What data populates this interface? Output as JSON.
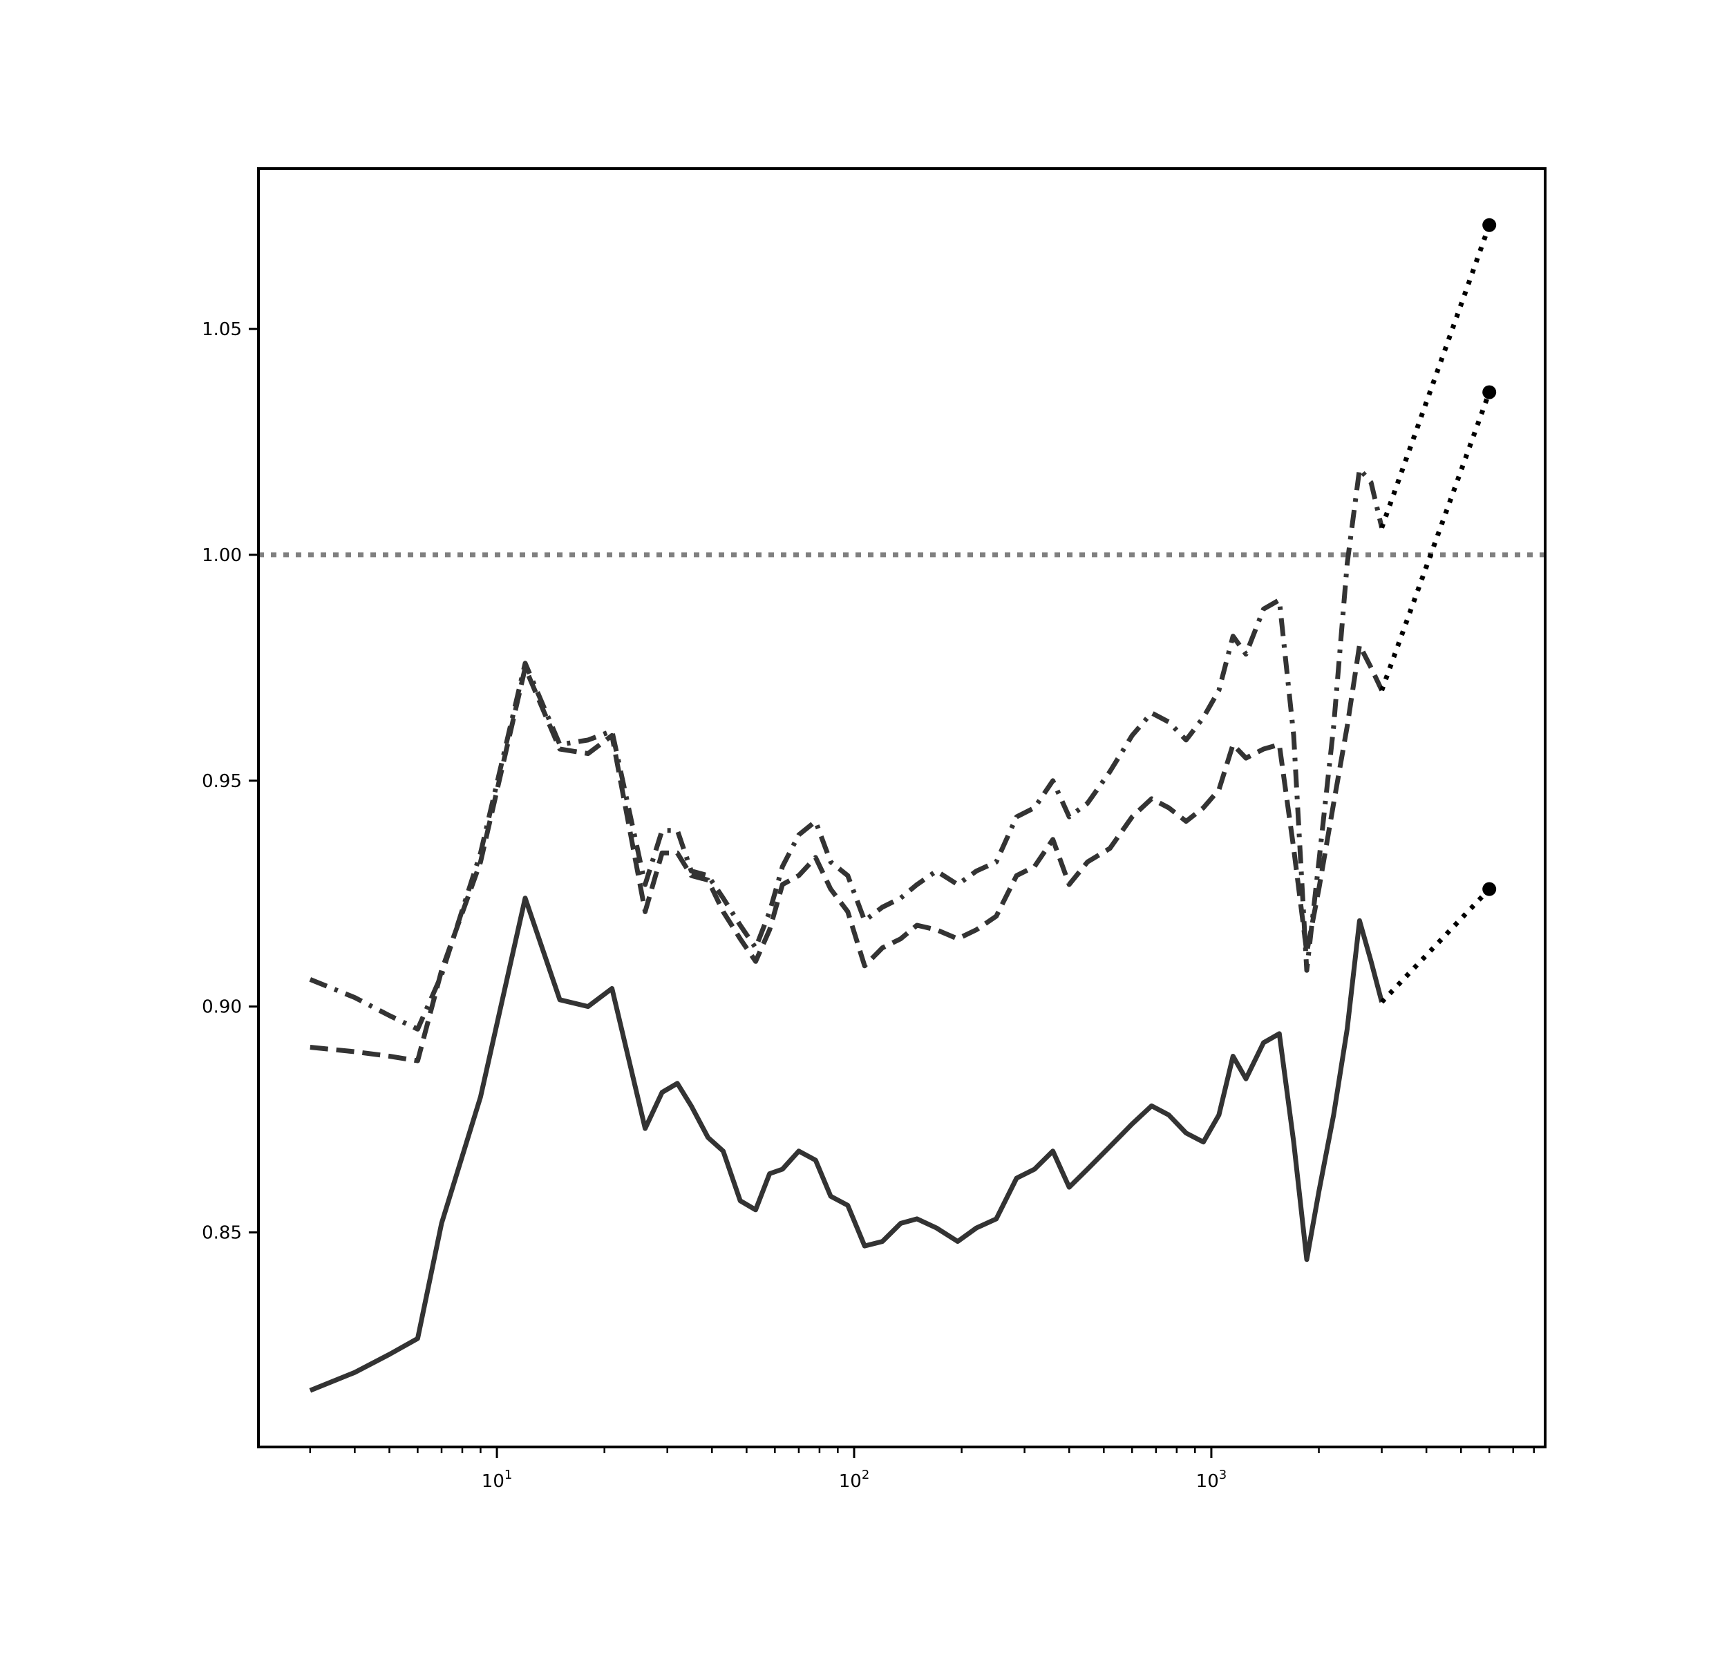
{
  "chart_data": {
    "type": "line",
    "title": "",
    "xlabel": "",
    "ylabel": "",
    "xscale": "log",
    "xlim": [
      2.15,
      8600
    ],
    "ylim": [
      0.8025,
      1.0855
    ],
    "grid": false,
    "legend": "none",
    "x_ticks": [
      {
        "value": 10,
        "base": "10",
        "exp": "1"
      },
      {
        "value": 100,
        "base": "10",
        "exp": "2"
      },
      {
        "value": 1000,
        "base": "10",
        "exp": "3"
      }
    ],
    "y_ticks": [
      {
        "value": 0.85,
        "label": "0.85"
      },
      {
        "value": 0.9,
        "label": "0.90"
      },
      {
        "value": 0.95,
        "label": "0.95"
      },
      {
        "value": 1.0,
        "label": "1.00"
      },
      {
        "value": 1.05,
        "label": "1.05"
      }
    ],
    "reference_line": {
      "y": 1.0,
      "style": "dotted",
      "color": "#808080"
    },
    "series": [
      {
        "style": "solid",
        "color": "#333333",
        "x": [
          3,
          4,
          5,
          6,
          7,
          9,
          12,
          15,
          18,
          21,
          26,
          29,
          32,
          35,
          39,
          43,
          48,
          53,
          58,
          63,
          70,
          78,
          86,
          96,
          107,
          120,
          135,
          150,
          170,
          195,
          220,
          250,
          285,
          320,
          360,
          400,
          450,
          520,
          600,
          680,
          760,
          850,
          950,
          1050,
          1150,
          1250,
          1400,
          1550,
          1700,
          1850,
          2000,
          2200,
          2400,
          2600,
          2800,
          3000
        ],
        "values": [
          0.815,
          0.819,
          0.823,
          0.8265,
          0.852,
          0.88,
          0.924,
          0.9015,
          0.9,
          0.904,
          0.873,
          0.881,
          0.883,
          0.878,
          0.871,
          0.868,
          0.857,
          0.855,
          0.863,
          0.864,
          0.868,
          0.866,
          0.858,
          0.856,
          0.847,
          0.848,
          0.852,
          0.853,
          0.851,
          0.848,
          0.851,
          0.853,
          0.862,
          0.864,
          0.868,
          0.86,
          0.864,
          0.869,
          0.874,
          0.878,
          0.876,
          0.872,
          0.87,
          0.876,
          0.889,
          0.884,
          0.892,
          0.894,
          0.87,
          0.844,
          0.859,
          0.876,
          0.895,
          0.919,
          0.91,
          0.901
        ]
      },
      {
        "style": "dashed",
        "color": "#333333",
        "x": [
          3,
          4,
          5,
          6,
          7,
          9,
          12,
          15,
          18,
          21,
          26,
          29,
          32,
          35,
          39,
          43,
          48,
          53,
          58,
          63,
          70,
          78,
          86,
          96,
          107,
          120,
          135,
          150,
          170,
          195,
          220,
          250,
          285,
          320,
          360,
          400,
          450,
          520,
          600,
          680,
          760,
          850,
          950,
          1050,
          1150,
          1250,
          1400,
          1550,
          1700,
          1850,
          2000,
          2200,
          2400,
          2600,
          2800,
          3000
        ],
        "values": [
          0.891,
          0.89,
          0.889,
          0.888,
          0.908,
          0.932,
          0.975,
          0.957,
          0.956,
          0.96,
          0.921,
          0.934,
          0.934,
          0.929,
          0.928,
          0.921,
          0.915,
          0.91,
          0.917,
          0.927,
          0.929,
          0.933,
          0.926,
          0.921,
          0.909,
          0.913,
          0.915,
          0.918,
          0.917,
          0.915,
          0.917,
          0.92,
          0.929,
          0.931,
          0.937,
          0.927,
          0.932,
          0.935,
          0.942,
          0.946,
          0.944,
          0.941,
          0.944,
          0.948,
          0.958,
          0.955,
          0.957,
          0.958,
          0.935,
          0.912,
          0.926,
          0.945,
          0.962,
          0.98,
          0.975,
          0.97
        ]
      },
      {
        "style": "dashdot",
        "color": "#333333",
        "x": [
          3,
          4,
          5,
          6,
          7,
          9,
          12,
          15,
          18,
          21,
          26,
          29,
          32,
          35,
          39,
          43,
          48,
          53,
          58,
          63,
          70,
          78,
          86,
          96,
          107,
          120,
          135,
          150,
          170,
          195,
          220,
          250,
          285,
          320,
          360,
          400,
          450,
          520,
          600,
          680,
          760,
          850,
          950,
          1050,
          1150,
          1250,
          1400,
          1550,
          1700,
          1850,
          2000,
          2200,
          2400,
          2600,
          2800,
          3000
        ],
        "values": [
          0.906,
          0.902,
          0.898,
          0.895,
          0.907,
          0.934,
          0.976,
          0.958,
          0.959,
          0.961,
          0.927,
          0.939,
          0.939,
          0.93,
          0.929,
          0.924,
          0.918,
          0.913,
          0.921,
          0.931,
          0.938,
          0.941,
          0.932,
          0.929,
          0.919,
          0.922,
          0.924,
          0.927,
          0.93,
          0.927,
          0.93,
          0.932,
          0.942,
          0.944,
          0.95,
          0.942,
          0.945,
          0.952,
          0.96,
          0.965,
          0.963,
          0.959,
          0.964,
          0.97,
          0.982,
          0.978,
          0.988,
          0.99,
          0.96,
          0.908,
          0.932,
          0.962,
          0.998,
          1.019,
          1.016,
          1.006
        ]
      }
    ],
    "projections": [
      {
        "style": "dotted",
        "color": "#000000",
        "from": {
          "x": 3000,
          "y": 0.901
        },
        "to": {
          "x": 6000,
          "y": 0.926
        }
      },
      {
        "style": "dotted",
        "color": "#000000",
        "from": {
          "x": 3000,
          "y": 0.97
        },
        "to": {
          "x": 6000,
          "y": 1.036
        }
      },
      {
        "style": "dotted",
        "color": "#000000",
        "from": {
          "x": 3000,
          "y": 1.006
        },
        "to": {
          "x": 6000,
          "y": 1.073
        }
      }
    ]
  }
}
